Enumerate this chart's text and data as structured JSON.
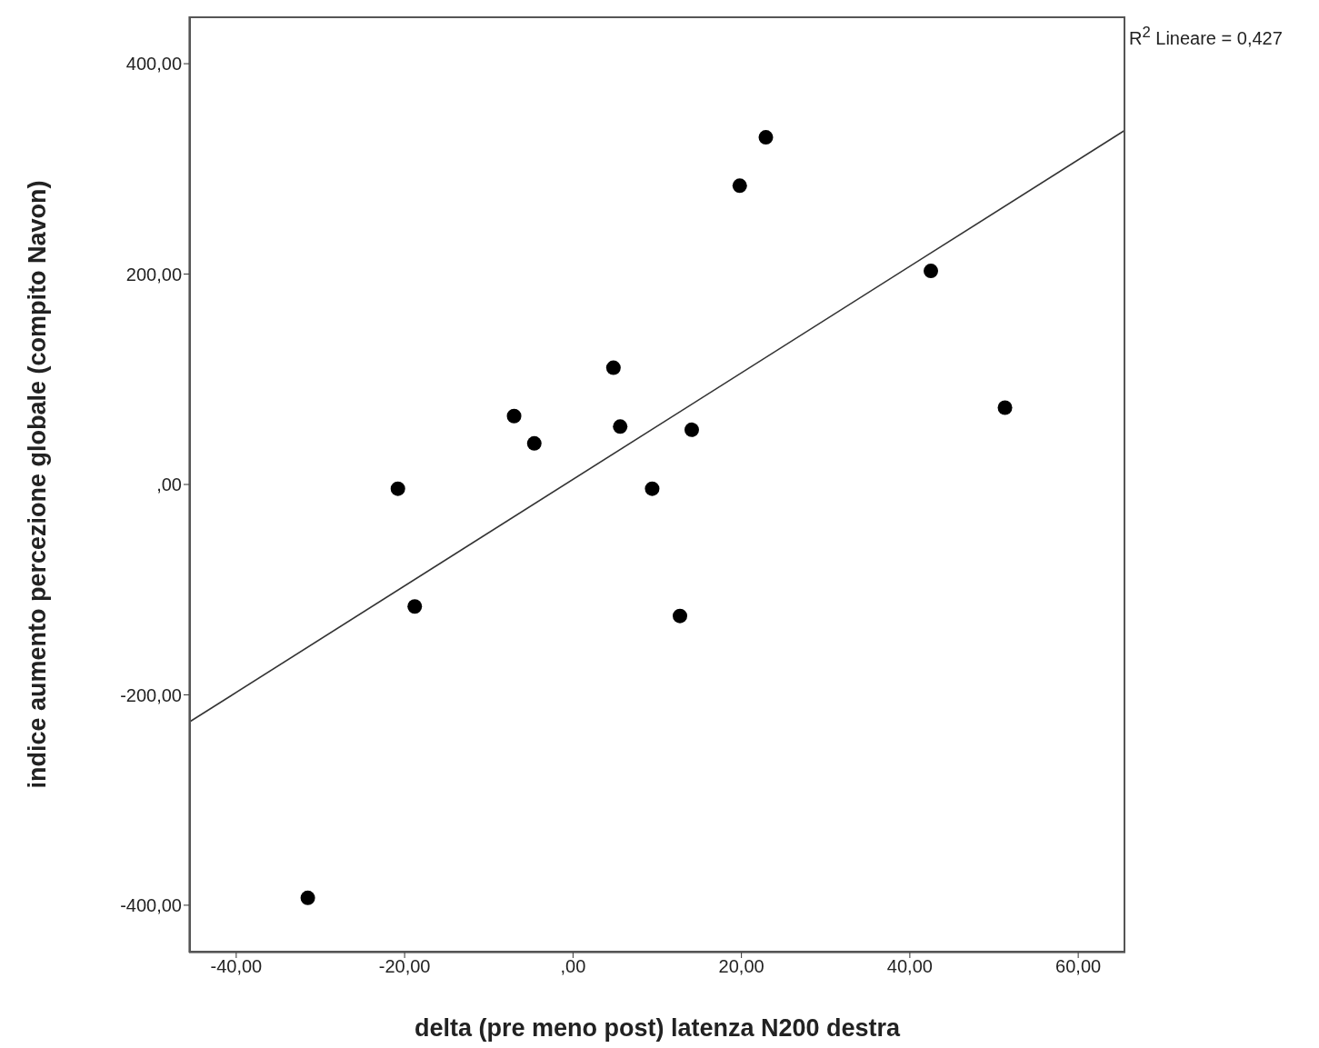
{
  "chart_data": {
    "type": "scatter",
    "xlabel": "delta (pre meno post) latenza N200 destra",
    "ylabel": "indice aumento percezione globale (compito Navon)",
    "annotations": [
      "R$^{2}$ Lineare = 0,427"
    ],
    "xlim": [
      -45.6,
      65.6
    ],
    "ylim": [
      -445,
      445
    ],
    "xticks": [
      {
        "value": -40,
        "label": "-40,00"
      },
      {
        "value": -20,
        "label": "-20,00"
      },
      {
        "value": 0,
        "label": ",00"
      },
      {
        "value": 20,
        "label": "20,00"
      },
      {
        "value": 40,
        "label": "40,00"
      },
      {
        "value": 60,
        "label": "60,00"
      }
    ],
    "yticks": [
      {
        "value": -400,
        "label": "-400,00"
      },
      {
        "value": -200,
        "label": "-200,00"
      },
      {
        "value": 0,
        "label": ",00"
      },
      {
        "value": 200,
        "label": "200,00"
      },
      {
        "value": 400,
        "label": "400,00"
      }
    ],
    "marker": "circle",
    "series": [
      {
        "color": "#000000",
        "x": [
          -31.5,
          -20.8,
          -18.8,
          -7.0,
          -4.6,
          4.8,
          5.6,
          9.4,
          12.7,
          14.1,
          19.8,
          22.9,
          42.5,
          51.3
        ],
        "values": [
          -393,
          -4,
          -116,
          65,
          39,
          111,
          55,
          -4,
          -125,
          52,
          284,
          330,
          203,
          73
        ]
      },
      {
        "type": "line",
        "color": "#333333",
        "line_style": "solid",
        "marker": "none",
        "x": [
          -45.6,
          65.6
        ],
        "values": [
          -226,
          337
        ]
      }
    ]
  }
}
